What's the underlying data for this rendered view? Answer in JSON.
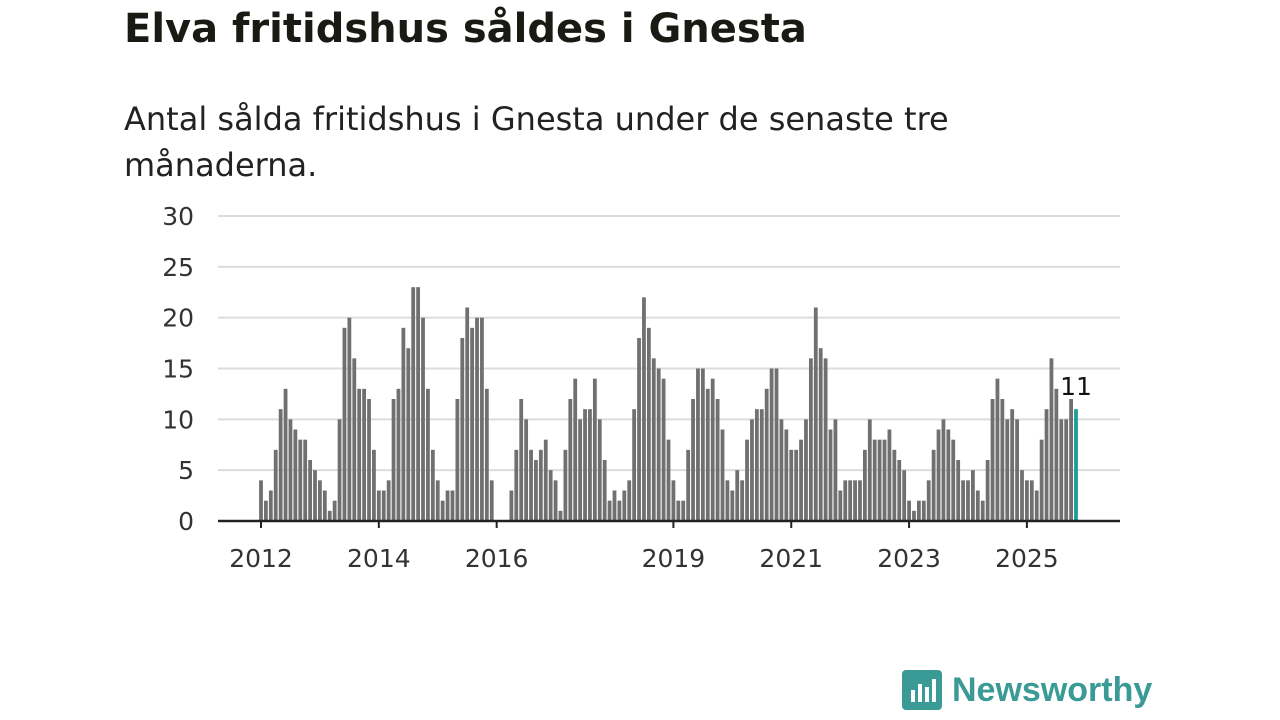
{
  "chart_data": {
    "type": "bar",
    "title": "Elva fritidshus såldes i Gnesta",
    "subtitle": "Antal sålda fritidshus i Gnesta under de senaste tre månaderna.",
    "xlabel": "",
    "ylabel": "",
    "ylim": [
      0,
      30
    ],
    "yticks": [
      "0",
      "5",
      "10",
      "15",
      "20",
      "25",
      "30"
    ],
    "xticks": [
      {
        "label": "2012",
        "index": 0
      },
      {
        "label": "2014",
        "index": 24
      },
      {
        "label": "2016",
        "index": 48
      },
      {
        "label": "2019",
        "index": 84
      },
      {
        "label": "2021",
        "index": 108
      },
      {
        "label": "2023",
        "index": 132
      },
      {
        "label": "2025",
        "index": 156
      }
    ],
    "grid": true,
    "start_month": "2012-01",
    "values": [
      4,
      2,
      3,
      7,
      11,
      13,
      10,
      9,
      8,
      8,
      6,
      5,
      4,
      3,
      1,
      2,
      10,
      19,
      20,
      16,
      13,
      13,
      12,
      7,
      3,
      3,
      4,
      12,
      13,
      19,
      17,
      23,
      23,
      20,
      13,
      7,
      4,
      2,
      3,
      3,
      12,
      18,
      21,
      19,
      20,
      20,
      13,
      4,
      0,
      0,
      0,
      3,
      7,
      12,
      10,
      7,
      6,
      7,
      8,
      5,
      4,
      1,
      7,
      12,
      14,
      10,
      11,
      11,
      14,
      10,
      6,
      2,
      3,
      2,
      3,
      4,
      11,
      18,
      22,
      19,
      16,
      15,
      14,
      8,
      4,
      2,
      2,
      7,
      12,
      15,
      15,
      13,
      14,
      12,
      9,
      4,
      3,
      5,
      4,
      8,
      10,
      11,
      11,
      13,
      15,
      15,
      10,
      9,
      7,
      7,
      8,
      10,
      16,
      21,
      17,
      16,
      9,
      10,
      3,
      4,
      4,
      4,
      4,
      7,
      10,
      8,
      8,
      8,
      9,
      7,
      6,
      5,
      2,
      1,
      2,
      2,
      4,
      7,
      9,
      10,
      9,
      8,
      6,
      4,
      4,
      5,
      3,
      2,
      6,
      12,
      14,
      12,
      10,
      11,
      10,
      5,
      4,
      4,
      3,
      8,
      11,
      16,
      13,
      10,
      10,
      12,
      11
    ],
    "highlight_label": "11",
    "bar_color": "#707070",
    "highlight_color": "#1a9e96"
  },
  "brand": {
    "name": "Newsworthy",
    "color": "#3a9a96"
  }
}
